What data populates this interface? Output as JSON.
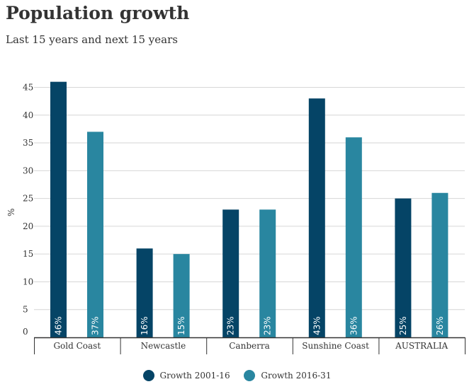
{
  "page": {
    "title": "Population growth",
    "subtitle": "Last 15 years and next 15 years"
  },
  "chart_data": {
    "type": "bar",
    "title": "Population growth",
    "subtitle": "Last 15 years and next 15 years",
    "xlabel": "",
    "ylabel": "%",
    "ylim": [
      0,
      45
    ],
    "yticks": [
      "0",
      "5",
      "10",
      "15",
      "20",
      "25",
      "30",
      "35",
      "40",
      "45"
    ],
    "grid": true,
    "legend_position": "bottom-center",
    "categories": [
      "Gold Coast",
      "Newcastle",
      "Canberra",
      "Sunshine Coast",
      "AUSTRALIA"
    ],
    "series": [
      {
        "name": "Growth 2001-16",
        "color": "#054466",
        "values": [
          46,
          16,
          23,
          43,
          25
        ],
        "labels": [
          "46%",
          "16%",
          "23%",
          "43%",
          "25%"
        ]
      },
      {
        "name": "Growth 2016-31",
        "color": "#2986a0",
        "values": [
          37,
          15,
          23,
          36,
          26
        ],
        "labels": [
          "37%",
          "15%",
          "23%",
          "36%",
          "26%"
        ]
      }
    ]
  }
}
